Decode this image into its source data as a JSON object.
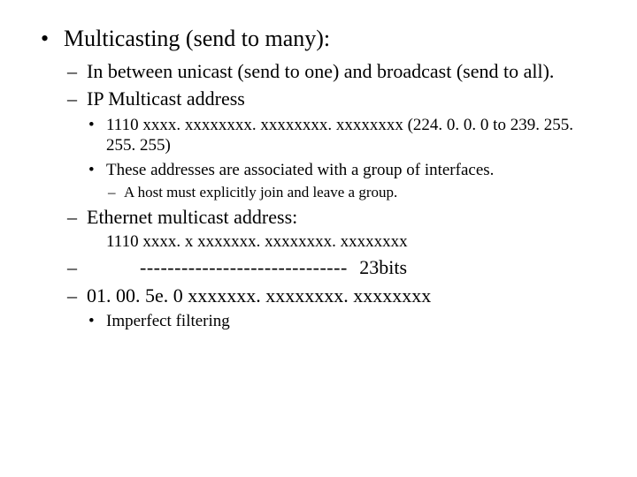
{
  "text_color": "#000000",
  "background_color": "#ffffff",
  "font_family": "Times New Roman",
  "lvl1_fontsize": 26,
  "lvl2_fontsize": 22,
  "lvl3_fontsize": 19,
  "lvl4_fontsize": 17,
  "title": "Multicasting (send to many):",
  "sub": {
    "between": "In between unicast (send to one) and broadcast (send to all).",
    "ipmc": "IP Multicast address",
    "ipmc_detail": {
      "pattern": "1110 xxxx. xxxxxxxx. xxxxxxxx. xxxxxxxx (224. 0. 0. 0 to 239. 255. 255. 255)",
      "assoc": "These addresses are associated with a group of interfaces.",
      "join": "A host must explicitly join and leave a group."
    },
    "ethmc": "Ethernet multicast address:",
    "eth_pattern": "1110 xxxx. x xxxxxxx. xxxxxxxx. xxxxxxxx",
    "dashes": "------------------------------",
    "bits23": "23bits",
    "mac": "01. 00. 5e. 0  xxxxxxx. xxxxxxxx. xxxxxxxx",
    "imperfect": "Imperfect filtering"
  }
}
